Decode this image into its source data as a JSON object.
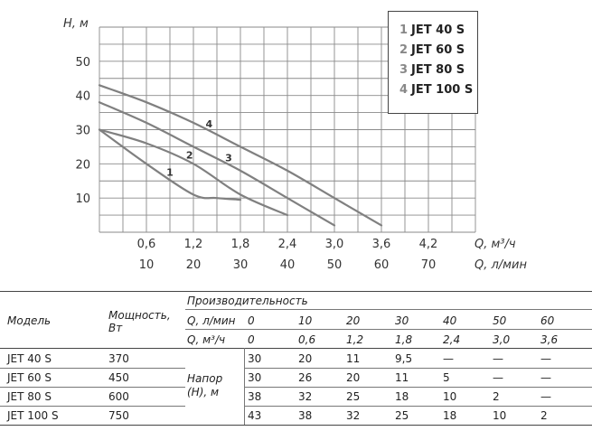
{
  "chart_data": {
    "type": "line",
    "y_axis_label": "H, м",
    "x_axis_label_primary": "Q, м³/ч",
    "x_axis_label_secondary": "Q, л/мин",
    "y_ticks": [
      10,
      20,
      30,
      40,
      50
    ],
    "x_ticks_primary": [
      "0,6",
      "1,2",
      "1,8",
      "2,4",
      "3,0",
      "3,6",
      "4,2"
    ],
    "x_ticks_secondary": [
      "10",
      "20",
      "30",
      "40",
      "50",
      "60",
      "70"
    ],
    "xlim": [
      0,
      4.8
    ],
    "ylim": [
      0,
      60
    ],
    "grid": true,
    "legend_placement": "top-right",
    "series": [
      {
        "name": "JET 40 S",
        "number": "1",
        "label_at": 0.9,
        "points": [
          [
            0,
            30
          ],
          [
            0.6,
            20
          ],
          [
            1.2,
            11
          ],
          [
            1.5,
            10
          ],
          [
            1.8,
            9.5
          ]
        ]
      },
      {
        "name": "JET 60 S",
        "number": "2",
        "label_at": 1.15,
        "points": [
          [
            0,
            30
          ],
          [
            0.6,
            26
          ],
          [
            1.2,
            20
          ],
          [
            1.8,
            11
          ],
          [
            2.4,
            5
          ]
        ]
      },
      {
        "name": "JET 80 S",
        "number": "3",
        "label_at": 1.65,
        "points": [
          [
            0,
            38
          ],
          [
            0.6,
            32
          ],
          [
            1.2,
            25
          ],
          [
            1.8,
            18
          ],
          [
            2.4,
            10
          ],
          [
            3.0,
            2
          ]
        ]
      },
      {
        "name": "JET 100 S",
        "number": "4",
        "label_at": 1.4,
        "points": [
          [
            0,
            43
          ],
          [
            0.6,
            38
          ],
          [
            1.2,
            32
          ],
          [
            1.8,
            25
          ],
          [
            2.4,
            18
          ],
          [
            3.0,
            10
          ],
          [
            3.6,
            2
          ]
        ]
      }
    ]
  },
  "table": {
    "model_header": "Модель",
    "power_header": "Мощность, Вт",
    "productivity_header": "Производительность",
    "q_lmin_label": "Q, л/мин",
    "q_m3h_label": "Q, м³/ч",
    "q_lmin_values": [
      "0",
      "10",
      "20",
      "30",
      "40",
      "50",
      "60"
    ],
    "q_m3h_values": [
      "0",
      "0,6",
      "1,2",
      "1,8",
      "2,4",
      "3,0",
      "3,6"
    ],
    "head_label": "Напор (Н), м",
    "rows": [
      {
        "model": "JET 40 S",
        "power": "370",
        "heads": [
          "30",
          "20",
          "11",
          "9,5",
          "—",
          "—",
          "—"
        ]
      },
      {
        "model": "JET 60 S",
        "power": "450",
        "heads": [
          "30",
          "26",
          "20",
          "11",
          "5",
          "—",
          "—"
        ]
      },
      {
        "model": "JET 80 S",
        "power": "600",
        "heads": [
          "38",
          "32",
          "25",
          "18",
          "10",
          "2",
          "—"
        ]
      },
      {
        "model": "JET 100 S",
        "power": "750",
        "heads": [
          "43",
          "38",
          "32",
          "25",
          "18",
          "10",
          "2"
        ]
      }
    ]
  }
}
